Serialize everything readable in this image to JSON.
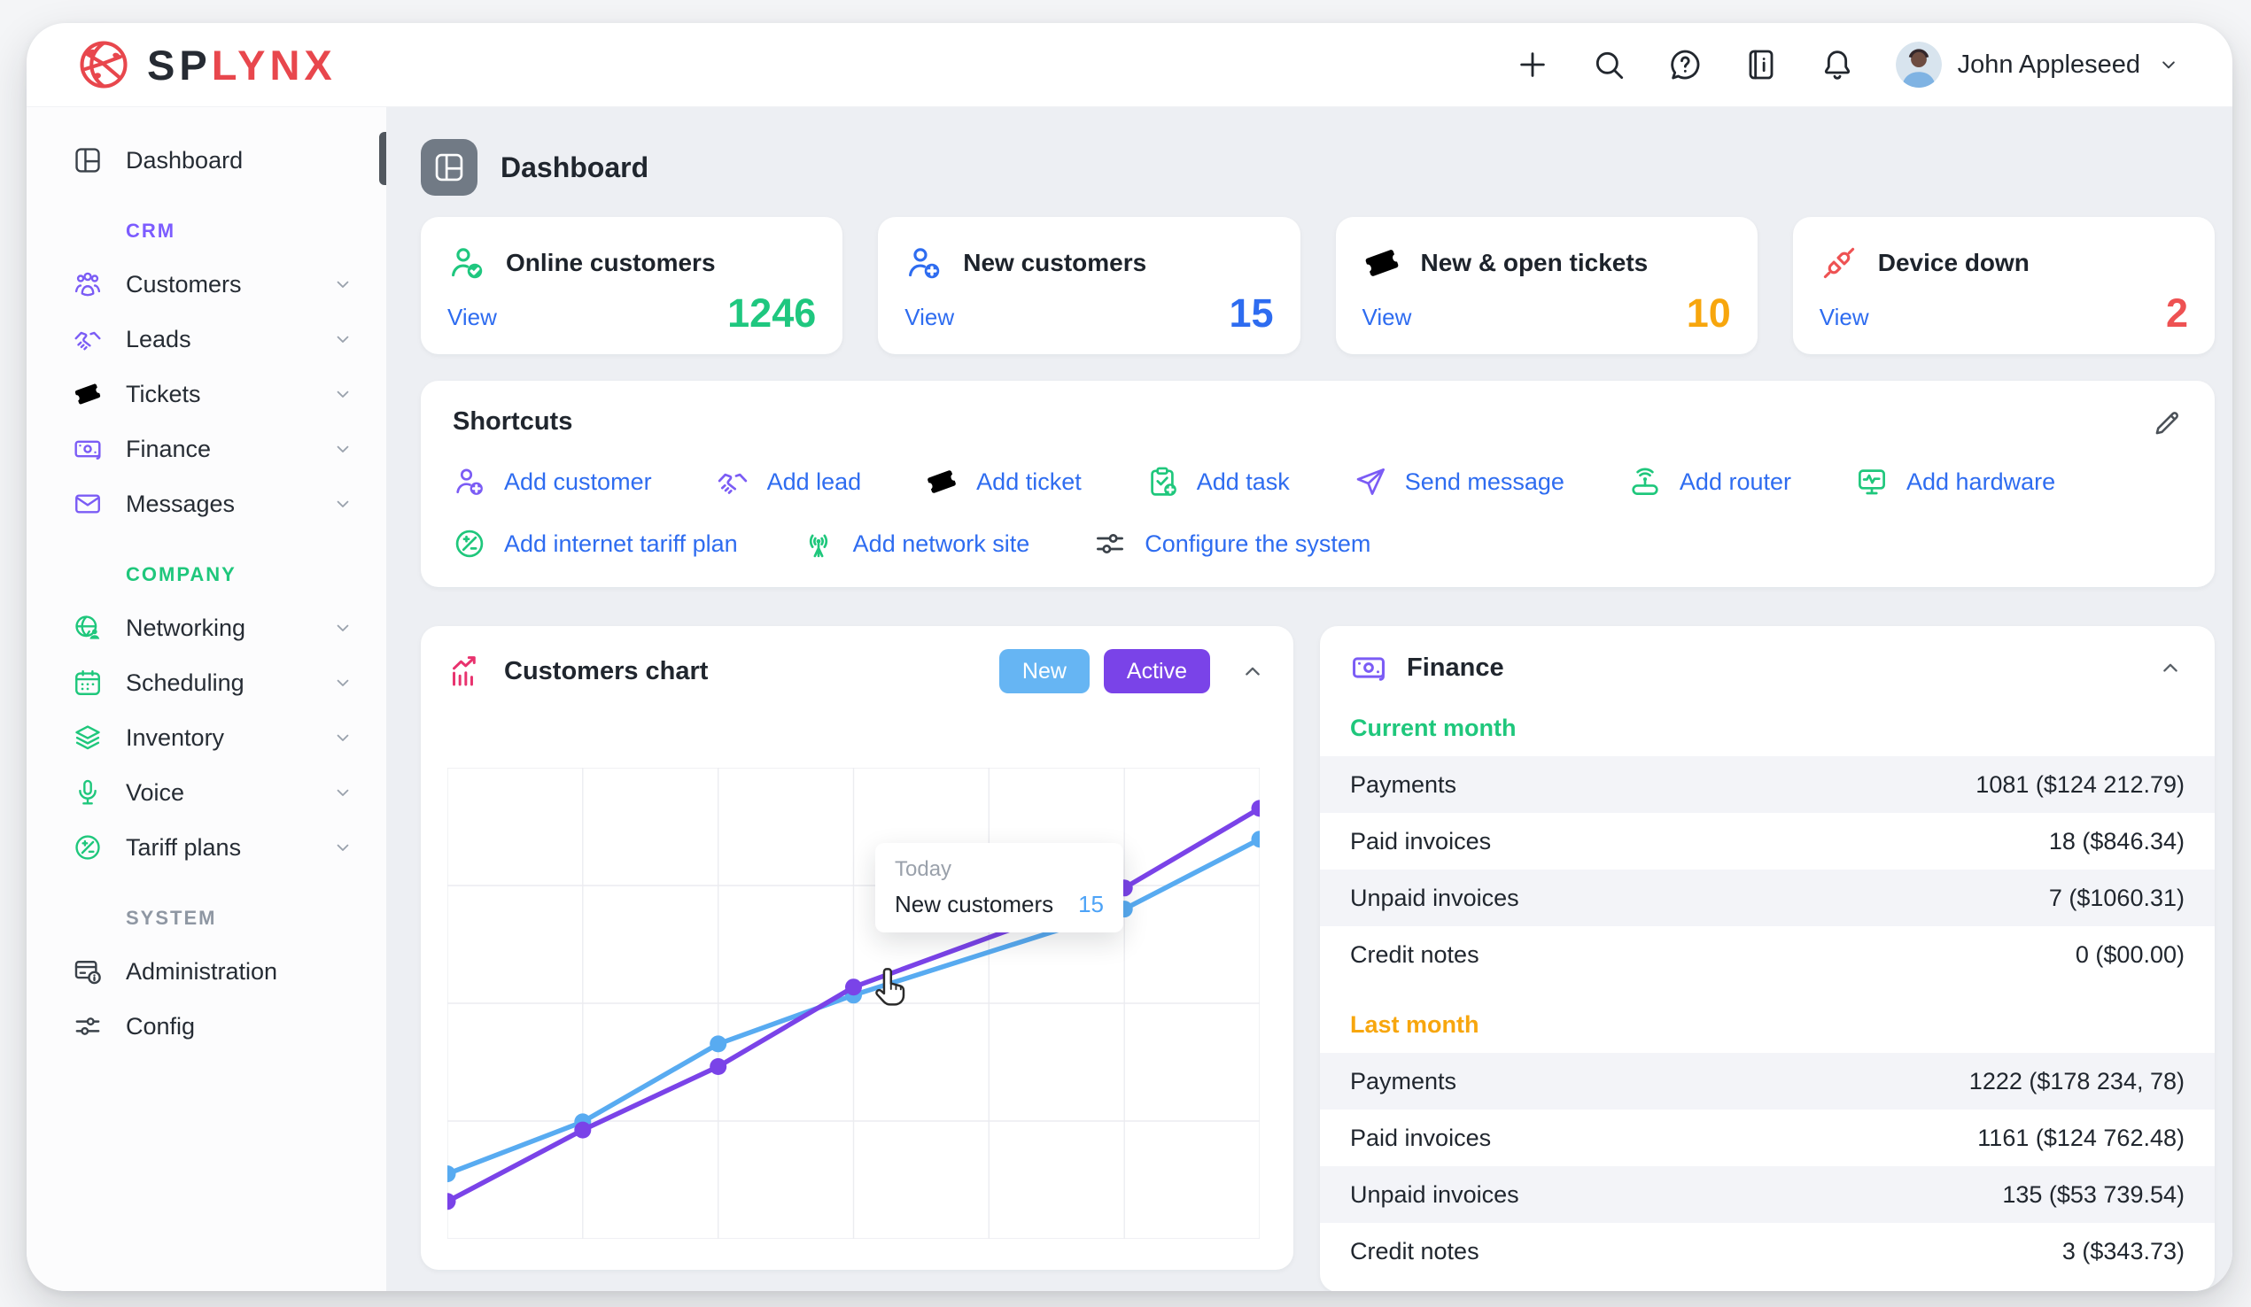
{
  "header": {
    "brand": {
      "prefix": "SP",
      "suffix": "LYNX"
    },
    "user_name": "John Appleseed"
  },
  "sidebar": {
    "dashboard_label": "Dashboard",
    "sections": [
      {
        "label": "CRM",
        "theme": "purple",
        "items": [
          {
            "label": "Customers",
            "icon": "customers-icon",
            "expandable": true
          },
          {
            "label": "Leads",
            "icon": "leads-icon",
            "expandable": true
          },
          {
            "label": "Tickets",
            "icon": "tickets-icon",
            "expandable": true
          },
          {
            "label": "Finance",
            "icon": "finance-icon",
            "expandable": true
          },
          {
            "label": "Messages",
            "icon": "messages-icon",
            "expandable": true
          }
        ]
      },
      {
        "label": "COMPANY",
        "theme": "green",
        "items": [
          {
            "label": "Networking",
            "icon": "networking-icon",
            "expandable": true
          },
          {
            "label": "Scheduling",
            "icon": "scheduling-icon",
            "expandable": true
          },
          {
            "label": "Inventory",
            "icon": "inventory-icon",
            "expandable": true
          },
          {
            "label": "Voice",
            "icon": "voice-icon",
            "expandable": true
          },
          {
            "label": "Tariff plans",
            "icon": "tariff-plans-icon",
            "expandable": true
          }
        ]
      },
      {
        "label": "SYSTEM",
        "theme": "dark",
        "items": [
          {
            "label": "Administration",
            "icon": "administration-icon",
            "expandable": false
          },
          {
            "label": "Config",
            "icon": "config-icon",
            "expandable": false
          }
        ]
      }
    ]
  },
  "page": {
    "title": "Dashboard"
  },
  "stat_cards": [
    {
      "title": "Online customers",
      "view_label": "View",
      "value": "1246",
      "icon": "user-check-icon",
      "color": "#1fc77f"
    },
    {
      "title": "New customers",
      "view_label": "View",
      "value": "15",
      "icon": "user-plus-icon",
      "color": "#2e6cf0"
    },
    {
      "title": "New & open tickets",
      "view_label": "View",
      "value": "10",
      "icon": "ticket-icon",
      "color": "#f7a60d"
    },
    {
      "title": "Device down",
      "view_label": "View",
      "value": "2",
      "icon": "unplugged-icon",
      "color": "#ee5253"
    }
  ],
  "shortcuts": {
    "title": "Shortcuts",
    "rows": [
      [
        {
          "label": "Add customer",
          "icon": "add-customer-icon",
          "icon_color": "#7b5cf5"
        },
        {
          "label": "Add lead",
          "icon": "handshake-icon",
          "icon_color": "#7b5cf5"
        },
        {
          "label": "Add ticket",
          "icon": "ticket-outline-icon",
          "icon_color": "#7b5cf5"
        },
        {
          "label": "Add task",
          "icon": "task-clipboard-icon",
          "icon_color": "#1fc77c"
        },
        {
          "label": "Send message",
          "icon": "paper-plane-icon",
          "icon_color": "#7b5cf5"
        },
        {
          "label": "Add router",
          "icon": "router-icon",
          "icon_color": "#1fc77c"
        },
        {
          "label": "Add hardware",
          "icon": "hardware-icon",
          "icon_color": "#1fc77c"
        }
      ],
      [
        {
          "label": "Add internet tariff plan",
          "icon": "tariff-plans-icon",
          "icon_color": "#1fc77c"
        },
        {
          "label": "Add network site",
          "icon": "antenna-icon",
          "icon_color": "#1fc77c"
        },
        {
          "label": "Configure the system",
          "icon": "sliders-icon",
          "icon_color": "#3a4149"
        }
      ]
    ]
  },
  "customers_chart": {
    "title": "Customers chart",
    "buttons": [
      {
        "label": "New",
        "color": "#66b5f3"
      },
      {
        "label": "Active",
        "color": "#7a43e8"
      }
    ],
    "tooltip": {
      "period": "Today",
      "label": "New customers",
      "value": "15"
    }
  },
  "chart_data": {
    "type": "line",
    "title": "Customers chart",
    "x_positions": [
      0,
      1,
      2,
      3,
      5,
      6
    ],
    "x_axis_max": 6,
    "ylim": [
      0,
      29
    ],
    "grid": {
      "columns": 6,
      "rows": 4,
      "color": "#ebecf0"
    },
    "legend_position": "none",
    "series": [
      {
        "name": "New",
        "color": "#58abf1",
        "values": [
          4.0,
          7.2,
          12.0,
          15.0,
          20.3,
          24.6
        ]
      },
      {
        "name": "Active",
        "color": "#7a43e8",
        "values": [
          2.3,
          6.7,
          10.6,
          15.5,
          21.6,
          26.5
        ]
      }
    ],
    "tooltip": {
      "period": "Today",
      "series": "New customers",
      "value": 15,
      "anchor_index": 3
    }
  },
  "finance": {
    "title": "Finance",
    "sections": [
      {
        "label": "Current month",
        "color": "#1fc77c",
        "rows": [
          {
            "label": "Payments",
            "value": "1081 ($124 212.79)"
          },
          {
            "label": "Paid invoices",
            "value": "18 ($846.34)"
          },
          {
            "label": "Unpaid invoices",
            "value": "7 ($1060.31)"
          },
          {
            "label": "Credit notes",
            "value": "0 ($00.00)"
          }
        ]
      },
      {
        "label": "Last month",
        "color": "#f7a60d",
        "rows": [
          {
            "label": "Payments",
            "value": "1222 ($178 234, 78)"
          },
          {
            "label": "Paid invoices",
            "value": "1161 ($124 762.48)"
          },
          {
            "label": "Unpaid invoices",
            "value": "135 ($53 739.54)"
          },
          {
            "label": "Credit notes",
            "value": "3 ($343.73)"
          }
        ]
      }
    ]
  },
  "colors": {
    "accent_purple": "#7b5cf5",
    "accent_green": "#1fc77c",
    "accent_blue_link": "#2e6cf0",
    "accent_amber": "#f7a60d",
    "accent_red": "#ee5253",
    "brand_red": "#e8474d",
    "chart_blue": "#58abf1",
    "chart_purple": "#7a43e8",
    "content_bg": "#edeff3",
    "stripe": "#f3f4f8"
  }
}
